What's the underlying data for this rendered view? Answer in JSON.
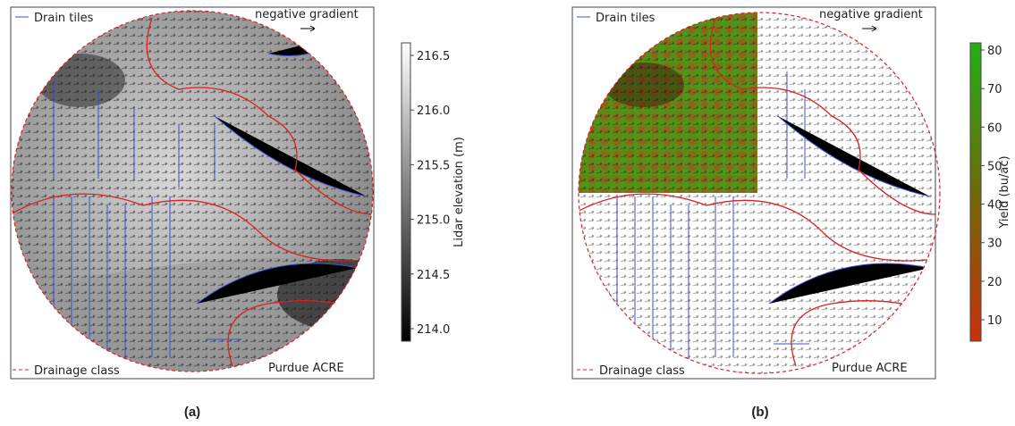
{
  "panels": [
    {
      "legend": {
        "drain_tiles": "Drain tiles",
        "negative_gradient": "negative gradient",
        "drainage_class": "Drainage class"
      },
      "site": "Purdue ACRE",
      "colorbar": {
        "label": "Lidar elevation (m)",
        "ticks": [
          216.5,
          216.0,
          215.5,
          215.0,
          214.5,
          214.0
        ],
        "tick_labels": [
          "216.5",
          "216.0",
          "215.5",
          "215.0",
          "214.5",
          "214.0"
        ]
      },
      "caption": "(a)"
    },
    {
      "legend": {
        "drain_tiles": "Drain tiles",
        "negative_gradient": "negative gradient",
        "drainage_class": "Drainage class"
      },
      "site": "Purdue ACRE",
      "colorbar": {
        "label": "Yield (bu/ac)",
        "ticks": [
          80,
          70,
          60,
          50,
          40,
          30,
          20,
          10
        ],
        "tick_labels": [
          "80",
          "70",
          "60",
          "50",
          "40",
          "30",
          "20",
          "10"
        ]
      },
      "caption": "(b)"
    }
  ]
}
